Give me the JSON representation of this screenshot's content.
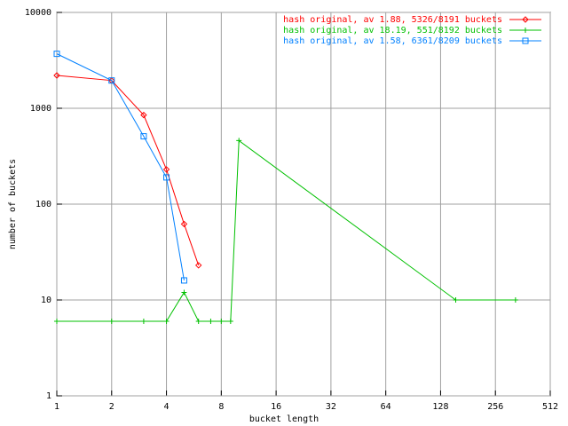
{
  "chart_data": {
    "type": "line",
    "xlabel": "bucket length",
    "ylabel": "number of buckets",
    "xlog": true,
    "ylog": true,
    "grid": true,
    "legend": "upper right",
    "xlim": [
      1,
      512
    ],
    "ylim": [
      1,
      10000
    ],
    "xticks": [
      1,
      2,
      4,
      8,
      16,
      32,
      64,
      128,
      256,
      512
    ],
    "yticks": [
      1,
      10,
      100,
      1000,
      10000
    ],
    "series": [
      {
        "name": "hash original, av 1.88, 5326/8191 buckets",
        "color": "#ff0000",
        "marker": "diamond",
        "x": [
          1,
          2,
          3,
          4,
          5,
          6
        ],
        "values": [
          2200,
          1950,
          850,
          230,
          62,
          23
        ]
      },
      {
        "name": "hash original, av 18.19, 551/8192 buckets",
        "color": "#00c000",
        "marker": "plus",
        "x": [
          1,
          2,
          3,
          4,
          5,
          6,
          7,
          8,
          9,
          10,
          155,
          330
        ],
        "values": [
          6,
          6,
          6,
          6,
          12,
          6,
          6,
          6,
          6,
          460,
          10,
          10
        ]
      },
      {
        "name": "hash original, av 1.58, 6361/8209 buckets",
        "color": "#0080ff",
        "marker": "square",
        "x": [
          1,
          2,
          3,
          4,
          5
        ],
        "values": [
          3700,
          1950,
          510,
          190,
          16
        ]
      }
    ]
  }
}
